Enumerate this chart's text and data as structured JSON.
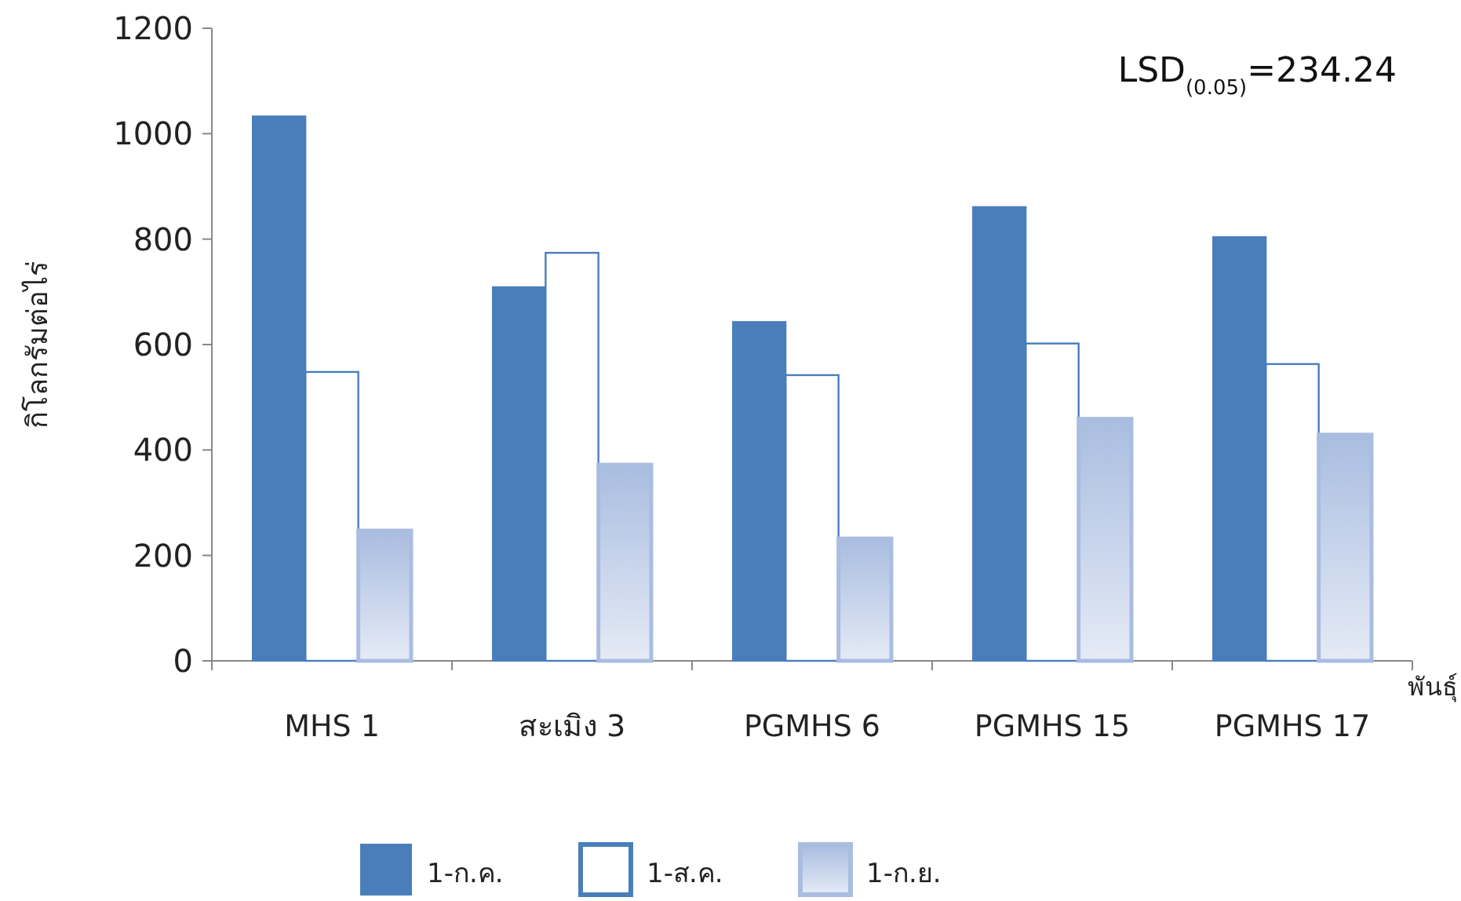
{
  "chart_data": {
    "type": "bar",
    "categories": [
      "MHS 1",
      "สะเมิง 3",
      "PGMHS 6",
      "PGMHS 15",
      "PGMHS 17"
    ],
    "series": [
      {
        "name": "1-ก.ค.",
        "color": "#4a7ebb",
        "values": [
          1033,
          709,
          643,
          861,
          804
        ]
      },
      {
        "name": "1-ส.ค.",
        "color": "#ffffff",
        "values": [
          548,
          774,
          542,
          602,
          563
        ]
      },
      {
        "name": "1-ก.ย.",
        "color": "#a9bde0",
        "values": [
          247,
          372,
          232,
          459,
          429
        ]
      }
    ],
    "xlabel": "พันธุ์",
    "ylabel": "กิโลกรัมต่อไร่",
    "annotations": [
      "LSD$_{(0.05)}$=234.24"
    ],
    "ylim": [
      0,
      1200
    ],
    "yticks": [
      0,
      200,
      400,
      600,
      800,
      1000,
      1200
    ],
    "legend": "bottom"
  }
}
